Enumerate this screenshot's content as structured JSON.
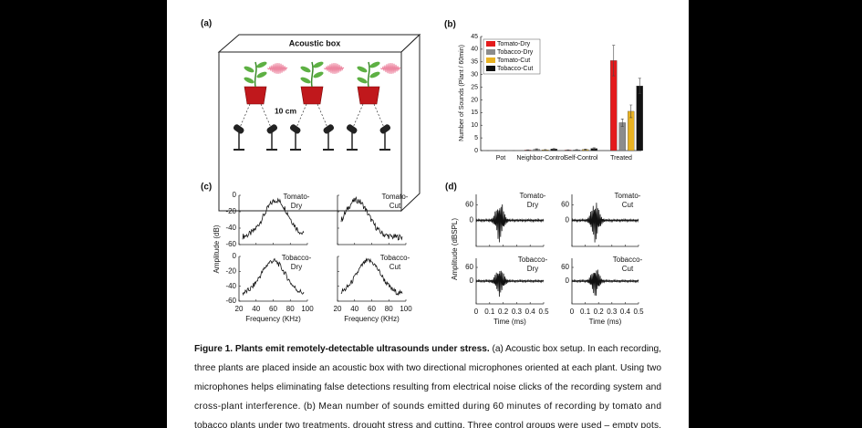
{
  "panels": {
    "a": {
      "label": "(a)",
      "box_title": "Acoustic box",
      "distance": "10 cm"
    },
    "b": {
      "label": "(b)",
      "chart": {
        "type": "bar",
        "ylabel": "Number of Sounds (Plant / 60min)",
        "categories": [
          "Pot",
          "Neighbor-Control",
          "Self-Control",
          "Treated"
        ],
        "series": [
          {
            "name": "Tomato-Dry",
            "color": "#e41a1c",
            "values": [
              0,
              0.2,
              0.2,
              35.5
            ],
            "errors": [
              0,
              0.1,
              0.1,
              6
            ]
          },
          {
            "name": "Tobacco-Dry",
            "color": "#8c8c8c",
            "values": [
              0,
              0.5,
              0.3,
              11
            ],
            "errors": [
              0,
              0.2,
              0.1,
              1.5
            ]
          },
          {
            "name": "Tomato-Cut",
            "color": "#e8b223",
            "values": [
              0,
              0.3,
              0.4,
              15.5
            ],
            "errors": [
              0,
              0.1,
              0.2,
              2.5
            ]
          },
          {
            "name": "Tobacco-Cut",
            "color": "#111111",
            "values": [
              0,
              0.6,
              0.8,
              25.5
            ],
            "errors": [
              0,
              0.2,
              0.3,
              3
            ]
          }
        ],
        "ylim": [
          0,
          45
        ],
        "yticks": [
          0,
          5,
          10,
          15,
          20,
          25,
          30,
          35,
          40,
          45
        ],
        "legend": "upper-left"
      }
    },
    "c": {
      "label": "(c)",
      "ylabel": "Amplitude (dB)",
      "xlabel": "Frequency (KHz)",
      "xlim": [
        20,
        100
      ],
      "xticks": [
        20,
        40,
        60,
        80,
        100
      ],
      "ylim": [
        -60,
        0
      ],
      "yticks": [
        0,
        -20,
        -40,
        -60
      ],
      "subplots": [
        {
          "label": [
            "Tomato-",
            "Dry"
          ]
        },
        {
          "label": [
            "Tomato-",
            "Cut"
          ]
        },
        {
          "label": [
            "Tobacco-",
            "Dry"
          ]
        },
        {
          "label": [
            "Tobacco-",
            "Cut"
          ]
        }
      ]
    },
    "d": {
      "label": "(d)",
      "ylabel": "Amplitude (dBSPL)",
      "xlabel": "Time (ms)",
      "xlim": [
        0,
        0.5
      ],
      "xticks": [
        0,
        0.1,
        0.2,
        0.3,
        0.4,
        0.5
      ],
      "ylim": [
        -100,
        100
      ],
      "yticks": [
        60,
        0
      ],
      "subplots": [
        {
          "label": [
            "Tomato-",
            "Dry"
          ]
        },
        {
          "label": [
            "Tomato-",
            "Cut"
          ]
        },
        {
          "label": [
            "Tobacco-",
            "Dry"
          ]
        },
        {
          "label": [
            "Tobacco-",
            "Cut"
          ]
        }
      ]
    }
  },
  "caption": {
    "bold": "Figure 1. Plants emit remotely-detectable ultrasounds under stress.",
    "lines": [
      " (a) Acoustic box setup. In each recording,",
      "three plants are placed inside an acoustic box with two directional microphones oriented at each plant. Using two",
      "microphones helps eliminating false detections resulting from electrical noise clicks of the recording system and",
      "cross-plant interference. (b) Mean number of sounds emitted during 60 minutes of recording by tomato and",
      "tobacco plants under two treatments, drought stress and cutting. Three control groups were used – empty pots,"
    ]
  }
}
